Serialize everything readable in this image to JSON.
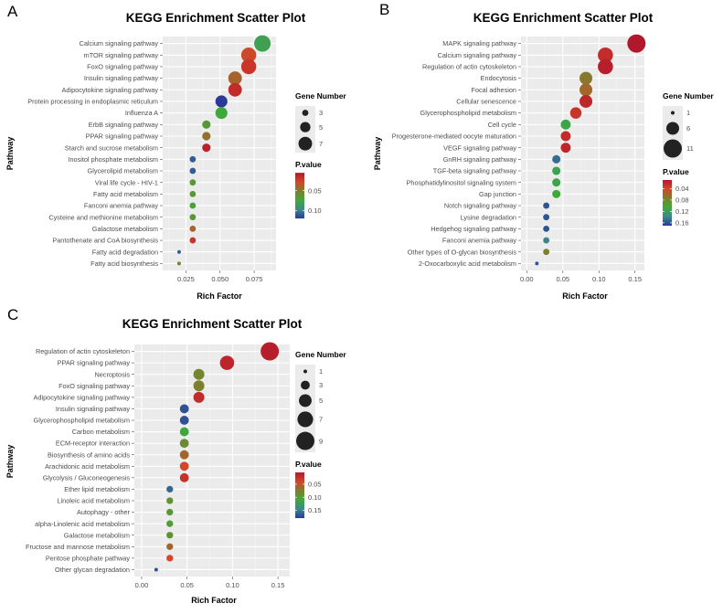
{
  "figure_colors": {
    "panel_bg": "#EBEBEB",
    "grid_major": "#FFFFFF",
    "grid_minor": "#F4F4F4",
    "text_dark": "#000000",
    "tick_text": "#4D4D4D",
    "bubble_legend": "#222222",
    "gradient": [
      "#B2182B",
      "#D4452A",
      "#7C7F2C",
      "#3FA83B",
      "#3B8A8A",
      "#2B3A99"
    ]
  },
  "chart_data": [
    {
      "panel_letter": "A",
      "type": "scatter",
      "title": "KEGG Enrichment Scatter Plot",
      "xlabel": "Rich Factor",
      "ylabel": "Pathway",
      "xlim": [
        0.008,
        0.091
      ],
      "xticks": [
        0.025,
        0.05,
        0.075
      ],
      "xtick_labels": [
        "0.025",
        "0.050",
        "0.075"
      ],
      "size_legend": {
        "title": "Gene Number",
        "values": [
          3,
          5,
          7
        ],
        "labels": [
          "3",
          "5",
          "7"
        ],
        "size_range": [
          2,
          9
        ]
      },
      "color_legend": {
        "title": "P.value",
        "min": 0.005,
        "max": 0.12,
        "ticks": [
          0.05,
          0.1
        ],
        "tick_labels": [
          "0.05",
          "0.10"
        ]
      },
      "categories": [
        "Calcium signaling pathway",
        "mTOR signaling pathway",
        "FoxO signaling pathway",
        "Insulin signaling pathway",
        "Adipocytokine signaling pathway",
        "Protein processing in endoplasmic reticulum",
        "Influenza A",
        "ErbB signaling pathway",
        "PPAR signaling pathway",
        "Starch and sucrose metabolism",
        "Inositol phosphate metabolism",
        "Glycerolipid metabolism",
        "Viral life cycle - HIV-1",
        "Fatty acid metabolism",
        "Fanconi anemia pathway",
        "Cysteine and methionine metabolism",
        "Galactose metabolism",
        "Pantothenate and CoA biosynthesis",
        "Fatty acid degradation",
        "Fatty acid biosynthesis"
      ],
      "rich_factor": [
        0.081,
        0.071,
        0.071,
        0.061,
        0.061,
        0.051,
        0.051,
        0.04,
        0.04,
        0.04,
        0.03,
        0.03,
        0.03,
        0.03,
        0.03,
        0.03,
        0.03,
        0.03,
        0.02,
        0.02
      ],
      "gene_number": [
        9,
        8,
        8,
        7,
        7,
        6,
        6,
        4,
        4,
        4,
        3,
        3,
        3,
        3,
        3,
        3,
        3,
        3,
        2,
        2
      ],
      "pvalue": [
        0.08,
        0.03,
        0.02,
        0.04,
        0.015,
        0.12,
        0.075,
        0.065,
        0.045,
        0.01,
        0.11,
        0.11,
        0.065,
        0.065,
        0.07,
        0.065,
        0.04,
        0.02,
        0.11,
        0.055
      ]
    },
    {
      "panel_letter": "B",
      "type": "scatter",
      "title": "KEGG Enrichment Scatter Plot",
      "xlabel": "Rich Factor",
      "ylabel": "Pathway",
      "xlim": [
        -0.008,
        0.163
      ],
      "xticks": [
        0.0,
        0.05,
        0.1,
        0.15
      ],
      "xtick_labels": [
        "0.00",
        "0.05",
        "0.10",
        "0.15"
      ],
      "size_legend": {
        "title": "Gene Number",
        "values": [
          1,
          6,
          11
        ],
        "labels": [
          "1",
          "6",
          "11"
        ],
        "size_range": [
          2,
          10
        ]
      },
      "color_legend": {
        "title": "P.value",
        "min": 0.01,
        "max": 0.17,
        "ticks": [
          0.04,
          0.08,
          0.12,
          0.16
        ],
        "tick_labels": [
          "0.04",
          "0.08",
          "0.12",
          "0.16"
        ]
      },
      "categories": [
        "MAPK signaling pathway",
        "Calcium signaling pathway",
        "Regulation of actin cytoskeleton",
        "Endocytosis",
        "Focal adhesion",
        "Cellular senescence",
        "Glycerophospholipid metabolism",
        "Cell cycle",
        "Progesterone-mediated oocyte maturation",
        "VEGF signaling pathway",
        "GnRH signaling pathway",
        "TGF-beta signaling pathway",
        "Phosphatidylinositol signaling system",
        "Gap junction",
        "Notch signaling pathway",
        "Lysine degradation",
        "Hedgehog signaling pathway",
        "Fanconi anemia pathway",
        "Other types of O-glycan biosynthesis",
        "2-Oxocarboxylic acid metabolism"
      ],
      "rich_factor": [
        0.152,
        0.109,
        0.109,
        0.082,
        0.082,
        0.082,
        0.068,
        0.054,
        0.054,
        0.054,
        0.041,
        0.041,
        0.041,
        0.041,
        0.027,
        0.027,
        0.027,
        0.027,
        0.027,
        0.014
      ],
      "gene_number": [
        11,
        8,
        8,
        6,
        6,
        6,
        5,
        4,
        4,
        4,
        3,
        3,
        3,
        3,
        2,
        2,
        2,
        2,
        2,
        1
      ],
      "pvalue": [
        0.01,
        0.025,
        0.015,
        0.07,
        0.06,
        0.02,
        0.03,
        0.11,
        0.025,
        0.02,
        0.15,
        0.115,
        0.11,
        0.105,
        0.16,
        0.16,
        0.16,
        0.14,
        0.075,
        0.16
      ]
    },
    {
      "panel_letter": "C",
      "type": "scatter",
      "title": "KEGG Enrichment Scatter Plot",
      "xlabel": "Rich Factor",
      "ylabel": "Pathway",
      "xlim": [
        -0.008,
        0.163
      ],
      "xticks": [
        0.0,
        0.05,
        0.1,
        0.15
      ],
      "xtick_labels": [
        "0.00",
        "0.05",
        "0.10",
        "0.15"
      ],
      "size_legend": {
        "title": "Gene Number",
        "values": [
          1,
          3,
          5,
          7,
          9
        ],
        "labels": [
          "1",
          "3",
          "5",
          "7",
          "9"
        ],
        "size_range": [
          2,
          10
        ]
      },
      "color_legend": {
        "title": "P.value",
        "min": 0.005,
        "max": 0.18,
        "ticks": [
          0.05,
          0.1,
          0.15
        ],
        "tick_labels": [
          "0.05",
          "0.10",
          "0.15"
        ]
      },
      "categories": [
        "Regulation of actin cytoskeleton",
        "PPAR signaling pathway",
        "Necroptosis",
        "FoxO signaling pathway",
        "Adipocytokine signaling pathway",
        "Insulin signaling pathway",
        "Glycerophospholipid metabolism",
        "Carbon metabolism",
        "ECM-receptor interaction",
        "Biosynthesis of amino acids",
        "Arachidonic acid metabolism",
        "Glycolysis / Gluconeogenesis",
        "Ether lipid metabolism",
        "Linoleic acid metabolism",
        "Autophagy - other",
        "alpha-Linolenic acid metabolism",
        "Galactose metabolism",
        "Fructose and mannose metabolism",
        "Pentose phosphate pathway",
        "Other glycan degradation"
      ],
      "rich_factor": [
        0.141,
        0.094,
        0.063,
        0.063,
        0.063,
        0.047,
        0.047,
        0.047,
        0.047,
        0.047,
        0.047,
        0.047,
        0.031,
        0.031,
        0.031,
        0.031,
        0.031,
        0.031,
        0.031,
        0.016
      ],
      "gene_number": [
        9,
        6,
        4,
        4,
        4,
        3,
        3,
        3,
        3,
        3,
        3,
        3,
        2,
        2,
        2,
        2,
        2,
        2,
        2,
        1
      ],
      "pvalue": [
        0.01,
        0.015,
        0.08,
        0.075,
        0.02,
        0.17,
        0.17,
        0.11,
        0.085,
        0.06,
        0.04,
        0.025,
        0.16,
        0.09,
        0.095,
        0.1,
        0.09,
        0.06,
        0.04,
        0.17
      ]
    }
  ]
}
